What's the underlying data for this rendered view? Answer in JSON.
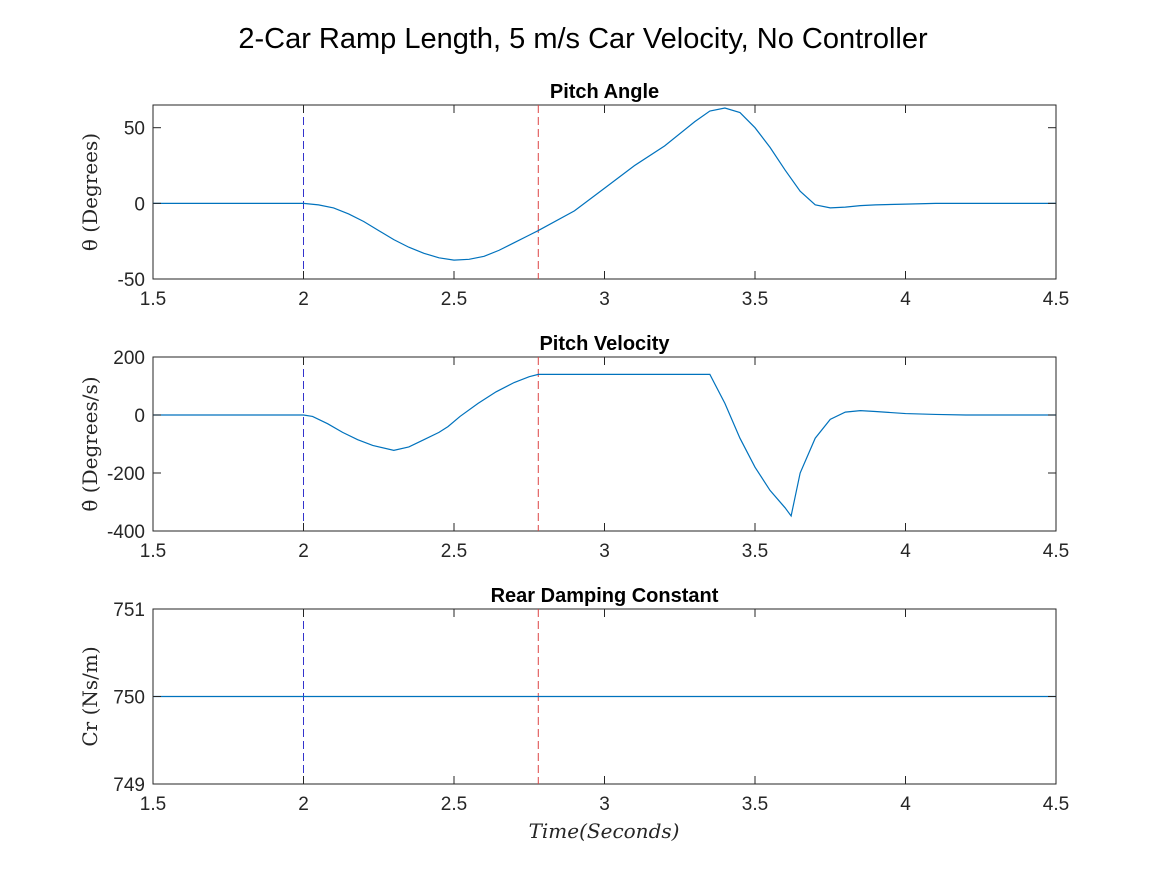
{
  "figure": {
    "suptitle": "2-Car Ramp Length,  5 m/s Car Velocity, No Controller",
    "xlabel": "Time(Seconds)"
  },
  "colors": {
    "series": "#0072BD",
    "marker_blue": "#3333cc",
    "marker_red": "#dd4444",
    "axes": "#262626"
  },
  "chart_data": [
    {
      "type": "line",
      "title": "Pitch Angle",
      "ylabel": "θ (Degrees)",
      "xlim": [
        1.5,
        4.5
      ],
      "ylim": [
        -50,
        65
      ],
      "xticks": [
        1.5,
        2,
        2.5,
        3,
        3.5,
        4,
        4.5
      ],
      "xtick_labels": [
        "1.5",
        "2",
        "2.5",
        "3",
        "3.5",
        "4",
        "4.5"
      ],
      "yticks": [
        -50,
        0,
        50
      ],
      "ytick_labels": [
        "-50",
        "0",
        "50"
      ],
      "vlines": [
        {
          "x": 2.0,
          "color": "#3333cc",
          "style": "dashed"
        },
        {
          "x": 2.78,
          "color": "#dd4444",
          "style": "dashed"
        }
      ],
      "series": [
        {
          "x": [
            1.5,
            1.9,
            2.0,
            2.05,
            2.1,
            2.15,
            2.2,
            2.25,
            2.3,
            2.35,
            2.4,
            2.45,
            2.5,
            2.55,
            2.6,
            2.65,
            2.7,
            2.75,
            2.78,
            2.9,
            3.0,
            3.1,
            3.2,
            3.3,
            3.35,
            3.4,
            3.45,
            3.5,
            3.55,
            3.6,
            3.65,
            3.7,
            3.75,
            3.8,
            3.85,
            3.9,
            4.0,
            4.1,
            4.2,
            4.3,
            4.4,
            4.5
          ],
          "y": [
            0,
            0,
            0,
            -1,
            -3,
            -7,
            -12,
            -18,
            -24,
            -29,
            -33,
            -36,
            -37.5,
            -37,
            -35,
            -31,
            -26,
            -21,
            -18,
            -5,
            10,
            25,
            38,
            54,
            61,
            63,
            60,
            50,
            37,
            22,
            8,
            -1,
            -3,
            -2.5,
            -1.5,
            -1,
            -0.5,
            0,
            0,
            0,
            0,
            0
          ]
        }
      ]
    },
    {
      "type": "line",
      "title": "Pitch Velocity",
      "ylabel": "θ̇ (Degrees/s)",
      "xlim": [
        1.5,
        4.5
      ],
      "ylim": [
        -400,
        200
      ],
      "xticks": [
        1.5,
        2,
        2.5,
        3,
        3.5,
        4,
        4.5
      ],
      "xtick_labels": [
        "1.5",
        "2",
        "2.5",
        "3",
        "3.5",
        "4",
        "4.5"
      ],
      "yticks": [
        -400,
        -200,
        0,
        200
      ],
      "ytick_labels": [
        "-400",
        "-200",
        "0",
        "200"
      ],
      "vlines": [
        {
          "x": 2.0,
          "color": "#3333cc",
          "style": "dashed"
        },
        {
          "x": 2.78,
          "color": "#dd4444",
          "style": "dashed"
        }
      ],
      "series": [
        {
          "x": [
            1.5,
            1.9,
            2.0,
            2.03,
            2.08,
            2.13,
            2.18,
            2.23,
            2.3,
            2.35,
            2.4,
            2.45,
            2.48,
            2.52,
            2.58,
            2.64,
            2.7,
            2.75,
            2.78,
            3.0,
            3.2,
            3.35,
            3.4,
            3.45,
            3.5,
            3.55,
            3.6,
            3.62,
            3.65,
            3.7,
            3.75,
            3.8,
            3.85,
            3.9,
            4.0,
            4.1,
            4.2,
            4.3,
            4.4,
            4.5
          ],
          "y": [
            0,
            0,
            0,
            -5,
            -30,
            -60,
            -85,
            -105,
            -122,
            -110,
            -85,
            -60,
            -40,
            -5,
            40,
            80,
            112,
            132,
            140,
            140,
            140,
            140,
            40,
            -80,
            -180,
            -260,
            -320,
            -348,
            -200,
            -80,
            -15,
            10,
            15,
            12,
            5,
            2,
            0,
            0,
            0,
            0
          ]
        }
      ]
    },
    {
      "type": "line",
      "title": "Rear Damping Constant",
      "ylabel": "Cr (Ns/m)",
      "xlim": [
        1.5,
        4.5
      ],
      "ylim": [
        749,
        751
      ],
      "xticks": [
        1.5,
        2,
        2.5,
        3,
        3.5,
        4,
        4.5
      ],
      "xtick_labels": [
        "1.5",
        "2",
        "2.5",
        "3",
        "3.5",
        "4",
        "4.5"
      ],
      "yticks": [
        749,
        750,
        751
      ],
      "ytick_labels": [
        "749",
        "750",
        "751"
      ],
      "vlines": [
        {
          "x": 2.0,
          "color": "#3333cc",
          "style": "dashed"
        },
        {
          "x": 2.78,
          "color": "#dd4444",
          "style": "dashed"
        }
      ],
      "series": [
        {
          "x": [
            1.5,
            4.5
          ],
          "y": [
            750,
            750
          ]
        }
      ]
    }
  ]
}
